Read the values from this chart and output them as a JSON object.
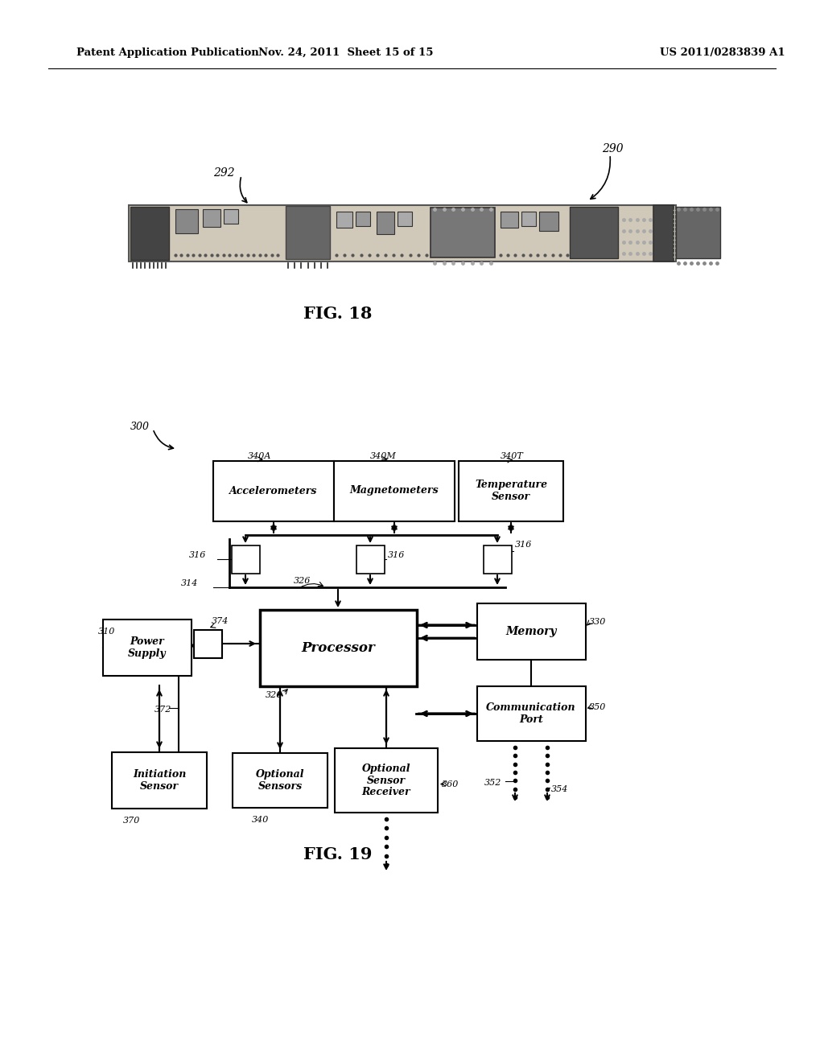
{
  "bg_color": "#ffffff",
  "header_left": "Patent Application Publication",
  "header_mid": "Nov. 24, 2011  Sheet 15 of 15",
  "header_right": "US 2011/0283839 A1",
  "fig18_label": "FIG. 18",
  "fig19_label": "FIG. 19",
  "ref_290": "290",
  "ref_292": "292",
  "ref_300": "300",
  "ref_310": "310",
  "ref_314": "314",
  "ref_316": "316",
  "ref_320": "320",
  "ref_326": "326",
  "ref_330": "330",
  "ref_340A": "340A",
  "ref_340M": "340M",
  "ref_340T": "340T",
  "ref_340": "340",
  "ref_350": "350",
  "ref_352": "352",
  "ref_354": "354",
  "ref_360": "360",
  "ref_370": "370",
  "ref_372": "372",
  "ref_374": "374",
  "box_acc": "Accelerometers",
  "box_mag": "Magnetometers",
  "box_temp": "Temperature\nSensor",
  "box_proc": "Processor",
  "box_mem": "Memory",
  "box_pwr": "Power\nSupply",
  "box_comm": "Communication\nPort",
  "box_init": "Initiation\nSensor",
  "box_opts": "Optional\nSensors",
  "box_optr": "Optional\nSensor\nReceiver"
}
